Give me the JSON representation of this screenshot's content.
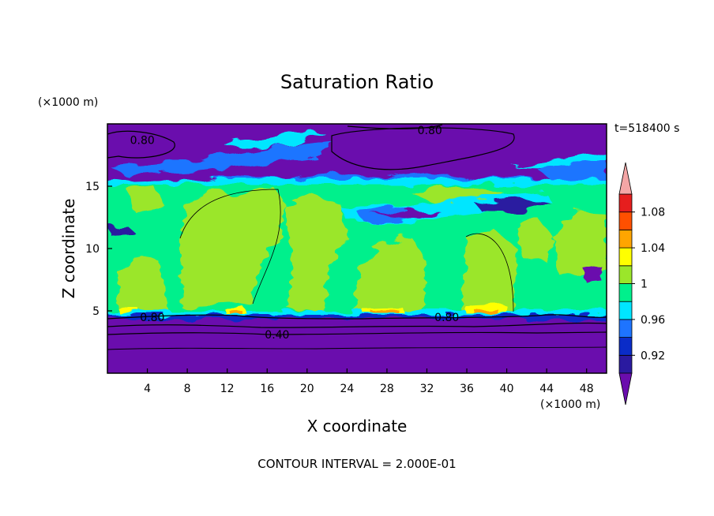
{
  "chart_data": {
    "type": "heatmap",
    "title": "Saturation Ratio",
    "xlabel": "X coordinate",
    "ylabel": "Z coordinate",
    "x_unit": "(×1000 m)",
    "y_unit": "(×1000 m)",
    "time_label": "t=518400 s",
    "footer": "CONTOUR INTERVAL = 2.000E-01",
    "xlim": [
      0,
      50
    ],
    "ylim": [
      0,
      20
    ],
    "x_ticks": [
      4,
      8,
      12,
      16,
      20,
      24,
      28,
      32,
      36,
      40,
      44,
      48
    ],
    "y_ticks": [
      5,
      10,
      15
    ],
    "colorbar": {
      "levels": [
        0.9,
        0.92,
        0.94,
        0.96,
        0.98,
        1.0,
        1.02,
        1.04,
        1.06,
        1.08,
        1.1
      ],
      "labels": [
        "0.92",
        "0.96",
        "1",
        "1.04",
        "1.08"
      ],
      "label_values": [
        0.92,
        0.96,
        1.0,
        1.04,
        1.08
      ],
      "colors": [
        "#6a0dad",
        "#2a1aa0",
        "#0a2cc8",
        "#1e74ff",
        "#00e6ff",
        "#00f08c",
        "#9be62a",
        "#ffff00",
        "#ffa500",
        "#ff5000",
        "#e61e1e"
      ],
      "over_color": "#f4a6a6",
      "under_color": "#6a0dad"
    },
    "contour_labels": [
      {
        "text": "0.80",
        "x": 3.5,
        "y": 18.7
      },
      {
        "text": "0.80",
        "x": 32.3,
        "y": 19.5
      },
      {
        "text": "0.80",
        "x": 4.5,
        "y": 4.5
      },
      {
        "text": "0.80",
        "x": 34.0,
        "y": 4.5
      },
      {
        "text": "0.40",
        "x": 17.0,
        "y": 3.1
      }
    ],
    "regions": [
      {
        "level": "0.90 and below",
        "z_range": [
          0,
          4.6
        ],
        "description_value": 0.9
      },
      {
        "level": "0.98-1.02",
        "z_range": [
          4.8,
          16.0
        ],
        "description_value": 1.0
      },
      {
        "level": "0.90 and below",
        "z_range": [
          16.5,
          20
        ],
        "description_value": 0.9
      }
    ]
  }
}
